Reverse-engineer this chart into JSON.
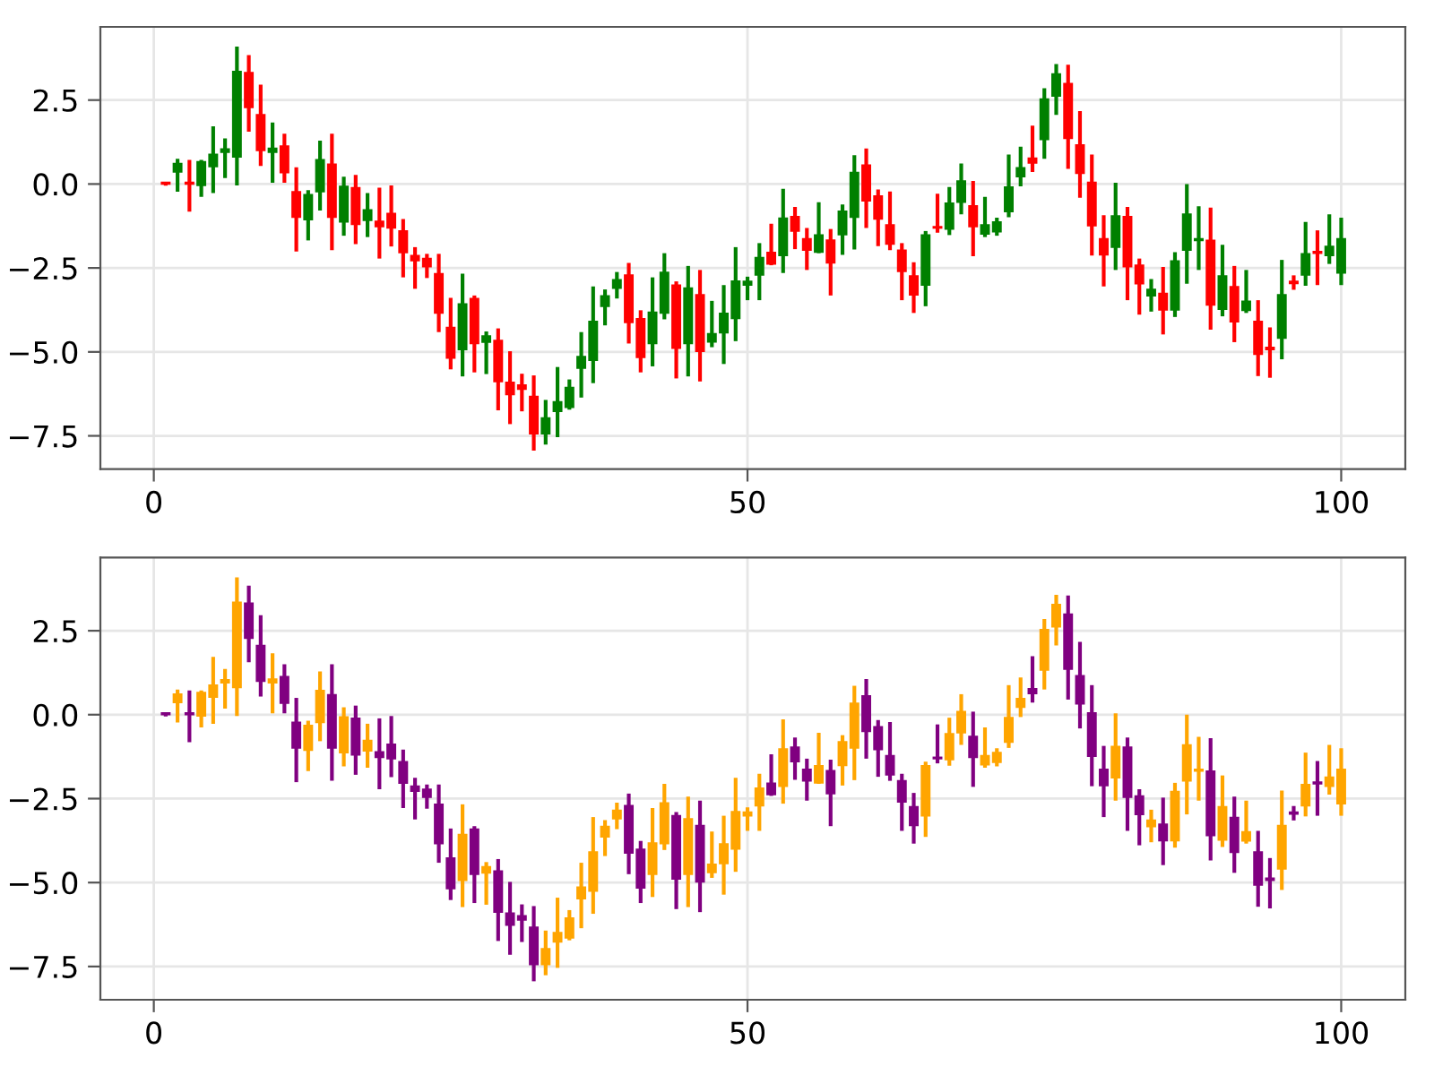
{
  "chart_data": [
    {
      "type": "candlestick",
      "x": [
        1,
        2,
        3,
        4,
        5,
        6,
        7,
        8,
        9,
        10,
        11,
        12,
        13,
        14,
        15,
        16,
        17,
        18,
        19,
        20,
        21,
        22,
        23,
        24,
        25,
        26,
        27,
        28,
        29,
        30,
        31,
        32,
        33,
        34,
        35,
        36,
        37,
        38,
        39,
        40,
        41,
        42,
        43,
        44,
        45,
        46,
        47,
        48,
        49,
        50,
        51,
        52,
        53,
        54,
        55,
        56,
        57,
        58,
        59,
        60,
        61,
        62,
        63,
        64,
        65,
        66,
        67,
        68,
        69,
        70,
        71,
        72,
        73,
        74,
        75,
        76,
        77,
        78,
        79,
        80,
        81,
        82,
        83,
        84,
        85,
        86,
        87,
        88,
        89,
        90,
        91,
        92,
        93,
        94,
        95,
        96,
        97,
        98,
        99,
        100
      ],
      "ohlc": [
        [
          0.05,
          0.05,
          -0.05,
          0
        ],
        [
          0.36,
          0.75,
          -0.23,
          0.61
        ],
        [
          0.05,
          0.72,
          -0.82,
          0
        ],
        [
          -0.04,
          0.72,
          -0.38,
          0.66
        ],
        [
          0.52,
          1.72,
          -0.27,
          0.88
        ],
        [
          0.95,
          1.36,
          0.18,
          1.04
        ],
        [
          0.81,
          4.09,
          -0.04,
          3.35
        ],
        [
          3.32,
          3.84,
          1.56,
          2.28
        ],
        [
          2.06,
          2.96,
          0.54,
          1.0
        ],
        [
          0.95,
          1.83,
          0.04,
          1.06
        ],
        [
          1.13,
          1.5,
          0.04,
          0.34
        ],
        [
          -0.23,
          0.5,
          -2.01,
          -0.99
        ],
        [
          -1.06,
          -0.18,
          -1.68,
          -0.32
        ],
        [
          -0.23,
          1.29,
          -0.79,
          0.72
        ],
        [
          0.59,
          1.5,
          -1.97,
          -0.99
        ],
        [
          -1.13,
          0.22,
          -1.54,
          -0.07
        ],
        [
          -0.11,
          0.27,
          -1.79,
          -1.2
        ],
        [
          -1.08,
          -0.27,
          -1.58,
          -0.77
        ],
        [
          -1.11,
          -0.11,
          -2.22,
          -1.27
        ],
        [
          -0.88,
          -0.04,
          -1.86,
          -1.31
        ],
        [
          -1.4,
          -1.04,
          -2.78,
          -2.04
        ],
        [
          -2.13,
          -1.88,
          -3.12,
          -2.28
        ],
        [
          -2.22,
          -2.08,
          -2.8,
          -2.46
        ],
        [
          -2.67,
          -2.08,
          -4.41,
          -3.84
        ],
        [
          -4.27,
          -3.39,
          -5.52,
          -5.18
        ],
        [
          -4.93,
          -2.67,
          -5.73,
          -3.57
        ],
        [
          -3.41,
          -3.32,
          -5.61,
          -4.75
        ],
        [
          -4.71,
          -4.39,
          -5.66,
          -4.53
        ],
        [
          -4.66,
          -4.3,
          -6.74,
          -5.88
        ],
        [
          -5.91,
          -4.98,
          -7.15,
          -6.27
        ],
        [
          -5.99,
          -5.65,
          -6.77,
          -6.11
        ],
        [
          -6.33,
          -5.7,
          -7.94,
          -7.44
        ],
        [
          -7.44,
          -6.43,
          -7.76,
          -6.97
        ],
        [
          -6.77,
          -5.45,
          -7.54,
          -6.49
        ],
        [
          -6.65,
          -5.82,
          -6.72,
          -6.06
        ],
        [
          -5.48,
          -4.41,
          -6.36,
          -5.14
        ],
        [
          -5.25,
          -3.05,
          -5.93,
          -4.09
        ],
        [
          -3.64,
          -3.14,
          -4.21,
          -3.33
        ],
        [
          -3.1,
          -2.62,
          -3.41,
          -2.85
        ],
        [
          -2.71,
          -2.35,
          -4.75,
          -4.12
        ],
        [
          -4.01,
          -3.76,
          -5.61,
          -5.16
        ],
        [
          -4.75,
          -2.78,
          -5.43,
          -3.82
        ],
        [
          -3.84,
          -2.06,
          -4.03,
          -2.63
        ],
        [
          -3.01,
          -2.9,
          -5.79,
          -4.89
        ],
        [
          -4.75,
          -2.44,
          -5.73,
          -3.1
        ],
        [
          -3.3,
          -2.56,
          -5.88,
          -4.98
        ],
        [
          -4.7,
          -3.48,
          -4.86,
          -4.46
        ],
        [
          -4.43,
          -3.01,
          -5.36,
          -3.85
        ],
        [
          -4.0,
          -1.88,
          -4.68,
          -2.89
        ],
        [
          -3.01,
          -2.76,
          -3.46,
          -2.9
        ],
        [
          -2.71,
          -1.76,
          -3.46,
          -2.19
        ],
        [
          -2.04,
          -1.18,
          -2.42,
          -2.38
        ],
        [
          -2.13,
          -0.14,
          -2.65,
          -1.02
        ],
        [
          -0.97,
          -0.68,
          -1.94,
          -1.4
        ],
        [
          -1.63,
          -1.31,
          -2.56,
          -1.97
        ],
        [
          -2.03,
          -0.54,
          -2.06,
          -1.52
        ],
        [
          -1.67,
          -1.34,
          -3.32,
          -2.35
        ],
        [
          -1.51,
          -0.61,
          -2.11,
          -0.81
        ],
        [
          -0.99,
          0.86,
          -1.95,
          0.34
        ],
        [
          0.56,
          1.06,
          -1.31,
          -0.5
        ],
        [
          -0.36,
          -0.16,
          -1.85,
          -1.04
        ],
        [
          -1.22,
          -0.22,
          -1.97,
          -1.79
        ],
        [
          -1.97,
          -1.76,
          -3.46,
          -2.6
        ],
        [
          -2.74,
          -2.33,
          -3.84,
          -3.3
        ],
        [
          -3.01,
          -1.4,
          -3.64,
          -1.52
        ],
        [
          -1.27,
          -0.29,
          -1.45,
          -1.31
        ],
        [
          -1.34,
          -0.09,
          -1.52,
          -0.57
        ],
        [
          -0.54,
          0.61,
          -0.9,
          0.09
        ],
        [
          -0.65,
          0.09,
          -2.15,
          -1.27
        ],
        [
          -1.49,
          -0.38,
          -1.58,
          -1.22
        ],
        [
          -1.42,
          -1.0,
          -1.54,
          -1.13
        ],
        [
          -0.82,
          0.88,
          -0.99,
          -0.09
        ],
        [
          0.22,
          1.11,
          -0.07,
          0.48
        ],
        [
          0.77,
          1.74,
          0.36,
          0.63
        ],
        [
          1.33,
          2.85,
          0.75,
          2.53
        ],
        [
          2.62,
          3.57,
          2.06,
          3.28
        ],
        [
          2.99,
          3.55,
          0.45,
          1.36
        ],
        [
          1.16,
          2.17,
          -0.41,
          0.32
        ],
        [
          0.05,
          0.88,
          -2.13,
          -1.24
        ],
        [
          -1.63,
          -0.93,
          -3.05,
          -2.11
        ],
        [
          -1.88,
          0.04,
          -2.56,
          -0.95
        ],
        [
          -0.97,
          -0.68,
          -3.46,
          -2.46
        ],
        [
          -2.42,
          -2.22,
          -3.89,
          -2.97
        ],
        [
          -3.33,
          -2.83,
          -3.8,
          -3.14
        ],
        [
          -3.26,
          -2.47,
          -4.48,
          -3.75
        ],
        [
          -3.75,
          -2.03,
          -3.96,
          -2.29
        ],
        [
          -1.97,
          0.0,
          -2.97,
          -0.9
        ],
        [
          -1.68,
          -0.66,
          -2.56,
          -1.63
        ],
        [
          -1.68,
          -0.7,
          -4.34,
          -3.6
        ],
        [
          -3.73,
          -1.81,
          -3.94,
          -2.74
        ],
        [
          -3.06,
          -2.44,
          -4.71,
          -4.1
        ],
        [
          -3.76,
          -2.56,
          -3.84,
          -3.49
        ],
        [
          -4.09,
          -3.46,
          -5.72,
          -5.07
        ],
        [
          -4.87,
          -4.27,
          -5.77,
          -4.93
        ],
        [
          -4.59,
          -2.26,
          -5.22,
          -3.3
        ],
        [
          -2.9,
          -2.72,
          -3.15,
          -2.96
        ],
        [
          -2.71,
          -1.13,
          -3.03,
          -2.08
        ],
        [
          -2.01,
          -1.38,
          -3.01,
          -2.06
        ],
        [
          -2.13,
          -0.9,
          -2.38,
          -1.86
        ],
        [
          -2.65,
          -1.0,
          -3.01,
          -1.63
        ]
      ],
      "colors": [
        "#ff0000",
        "#008000",
        "#ff0000",
        "#008000",
        "#008000",
        "#008000",
        "#008000",
        "#ff0000",
        "#ff0000",
        "#008000",
        "#ff0000",
        "#ff0000",
        "#008000",
        "#008000",
        "#ff0000",
        "#008000",
        "#ff0000",
        "#008000",
        "#ff0000",
        "#ff0000",
        "#ff0000",
        "#ff0000",
        "#ff0000",
        "#ff0000",
        "#ff0000",
        "#008000",
        "#ff0000",
        "#008000",
        "#ff0000",
        "#ff0000",
        "#ff0000",
        "#ff0000",
        "#008000",
        "#008000",
        "#008000",
        "#008000",
        "#008000",
        "#008000",
        "#008000",
        "#ff0000",
        "#ff0000",
        "#008000",
        "#008000",
        "#ff0000",
        "#008000",
        "#ff0000",
        "#008000",
        "#008000",
        "#008000",
        "#008000",
        "#008000",
        "#ff0000",
        "#008000",
        "#ff0000",
        "#ff0000",
        "#008000",
        "#ff0000",
        "#008000",
        "#008000",
        "#ff0000",
        "#ff0000",
        "#ff0000",
        "#ff0000",
        "#ff0000",
        "#008000",
        "#ff0000",
        "#008000",
        "#008000",
        "#ff0000",
        "#008000",
        "#008000",
        "#008000",
        "#008000",
        "#ff0000",
        "#008000",
        "#008000",
        "#ff0000",
        "#ff0000",
        "#ff0000",
        "#ff0000",
        "#008000",
        "#ff0000",
        "#ff0000",
        "#008000",
        "#ff0000",
        "#008000",
        "#008000",
        "#008000",
        "#ff0000",
        "#008000",
        "#ff0000",
        "#008000",
        "#ff0000",
        "#ff0000",
        "#008000",
        "#ff0000",
        "#008000",
        "#ff0000",
        "#008000",
        "#008000"
      ],
      "xlim": [
        -4.5,
        105.4
      ],
      "ylim": [
        -8.49,
        4.68
      ],
      "xticks": [
        0,
        50,
        100
      ],
      "yticks": [
        {
          "value": -7.5,
          "label": "−7.5"
        },
        {
          "value": -5,
          "label": "−5.0"
        },
        {
          "value": -2.5,
          "label": "−2.5"
        },
        {
          "value": 0,
          "label": "0.0"
        },
        2.5
      ],
      "grid": true
    },
    {
      "type": "candlestick",
      "x": [
        1,
        2,
        3,
        4,
        5,
        6,
        7,
        8,
        9,
        10,
        11,
        12,
        13,
        14,
        15,
        16,
        17,
        18,
        19,
        20,
        21,
        22,
        23,
        24,
        25,
        26,
        27,
        28,
        29,
        30,
        31,
        32,
        33,
        34,
        35,
        36,
        37,
        38,
        39,
        40,
        41,
        42,
        43,
        44,
        45,
        46,
        47,
        48,
        49,
        50,
        51,
        52,
        53,
        54,
        55,
        56,
        57,
        58,
        59,
        60,
        61,
        62,
        63,
        64,
        65,
        66,
        67,
        68,
        69,
        70,
        71,
        72,
        73,
        74,
        75,
        76,
        77,
        78,
        79,
        80,
        81,
        82,
        83,
        84,
        85,
        86,
        87,
        88,
        89,
        90,
        91,
        92,
        93,
        94,
        95,
        96,
        97,
        98,
        99,
        100
      ],
      "ohlc": [
        [
          0.05,
          0.05,
          -0.05,
          0
        ],
        [
          0.36,
          0.75,
          -0.23,
          0.61
        ],
        [
          0.05,
          0.72,
          -0.82,
          0
        ],
        [
          -0.04,
          0.72,
          -0.38,
          0.66
        ],
        [
          0.52,
          1.72,
          -0.27,
          0.88
        ],
        [
          0.95,
          1.36,
          0.18,
          1.04
        ],
        [
          0.81,
          4.09,
          -0.04,
          3.35
        ],
        [
          3.32,
          3.84,
          1.56,
          2.28
        ],
        [
          2.06,
          2.96,
          0.54,
          1.0
        ],
        [
          0.95,
          1.83,
          0.04,
          1.06
        ],
        [
          1.13,
          1.5,
          0.04,
          0.34
        ],
        [
          -0.23,
          0.5,
          -2.01,
          -0.99
        ],
        [
          -1.06,
          -0.18,
          -1.68,
          -0.32
        ],
        [
          -0.23,
          1.29,
          -0.79,
          0.72
        ],
        [
          0.59,
          1.5,
          -1.97,
          -0.99
        ],
        [
          -1.13,
          0.22,
          -1.54,
          -0.07
        ],
        [
          -0.11,
          0.27,
          -1.79,
          -1.2
        ],
        [
          -1.08,
          -0.27,
          -1.58,
          -0.77
        ],
        [
          -1.11,
          -0.11,
          -2.22,
          -1.27
        ],
        [
          -0.88,
          -0.04,
          -1.86,
          -1.31
        ],
        [
          -1.4,
          -1.04,
          -2.78,
          -2.04
        ],
        [
          -2.13,
          -1.88,
          -3.12,
          -2.28
        ],
        [
          -2.22,
          -2.08,
          -2.8,
          -2.46
        ],
        [
          -2.67,
          -2.08,
          -4.41,
          -3.84
        ],
        [
          -4.27,
          -3.39,
          -5.52,
          -5.18
        ],
        [
          -4.93,
          -2.67,
          -5.73,
          -3.57
        ],
        [
          -3.41,
          -3.32,
          -5.61,
          -4.75
        ],
        [
          -4.71,
          -4.39,
          -5.66,
          -4.53
        ],
        [
          -4.66,
          -4.3,
          -6.74,
          -5.88
        ],
        [
          -5.91,
          -4.98,
          -7.15,
          -6.27
        ],
        [
          -5.99,
          -5.65,
          -6.77,
          -6.11
        ],
        [
          -6.33,
          -5.7,
          -7.94,
          -7.44
        ],
        [
          -7.44,
          -6.43,
          -7.76,
          -6.97
        ],
        [
          -6.77,
          -5.45,
          -7.54,
          -6.49
        ],
        [
          -6.65,
          -5.82,
          -6.72,
          -6.06
        ],
        [
          -5.48,
          -4.41,
          -6.36,
          -5.14
        ],
        [
          -5.25,
          -3.05,
          -5.93,
          -4.09
        ],
        [
          -3.64,
          -3.14,
          -4.21,
          -3.33
        ],
        [
          -3.1,
          -2.62,
          -3.41,
          -2.85
        ],
        [
          -2.71,
          -2.35,
          -4.75,
          -4.12
        ],
        [
          -4.01,
          -3.76,
          -5.61,
          -5.16
        ],
        [
          -4.75,
          -2.78,
          -5.43,
          -3.82
        ],
        [
          -3.84,
          -2.06,
          -4.03,
          -2.63
        ],
        [
          -3.01,
          -2.9,
          -5.79,
          -4.89
        ],
        [
          -4.75,
          -2.44,
          -5.73,
          -3.1
        ],
        [
          -3.3,
          -2.56,
          -5.88,
          -4.98
        ],
        [
          -4.7,
          -3.48,
          -4.86,
          -4.46
        ],
        [
          -4.43,
          -3.01,
          -5.36,
          -3.85
        ],
        [
          -4.0,
          -1.88,
          -4.68,
          -2.89
        ],
        [
          -3.01,
          -2.76,
          -3.46,
          -2.9
        ],
        [
          -2.71,
          -1.76,
          -3.46,
          -2.19
        ],
        [
          -2.04,
          -1.18,
          -2.42,
          -2.38
        ],
        [
          -2.13,
          -0.14,
          -2.65,
          -1.02
        ],
        [
          -0.97,
          -0.68,
          -1.94,
          -1.4
        ],
        [
          -1.63,
          -1.31,
          -2.56,
          -1.97
        ],
        [
          -2.03,
          -0.54,
          -2.06,
          -1.52
        ],
        [
          -1.67,
          -1.34,
          -3.32,
          -2.35
        ],
        [
          -1.51,
          -0.61,
          -2.11,
          -0.81
        ],
        [
          -0.99,
          0.86,
          -1.95,
          0.34
        ],
        [
          0.56,
          1.06,
          -1.31,
          -0.5
        ],
        [
          -0.36,
          -0.16,
          -1.85,
          -1.04
        ],
        [
          -1.22,
          -0.22,
          -1.97,
          -1.79
        ],
        [
          -1.97,
          -1.76,
          -3.46,
          -2.6
        ],
        [
          -2.74,
          -2.33,
          -3.84,
          -3.3
        ],
        [
          -3.01,
          -1.4,
          -3.64,
          -1.52
        ],
        [
          -1.27,
          -0.29,
          -1.45,
          -1.31
        ],
        [
          -1.34,
          -0.09,
          -1.52,
          -0.57
        ],
        [
          -0.54,
          0.61,
          -0.9,
          0.09
        ],
        [
          -0.65,
          0.09,
          -2.15,
          -1.27
        ],
        [
          -1.49,
          -0.38,
          -1.58,
          -1.22
        ],
        [
          -1.42,
          -1.0,
          -1.54,
          -1.13
        ],
        [
          -0.82,
          0.88,
          -0.99,
          -0.09
        ],
        [
          0.22,
          1.11,
          -0.07,
          0.48
        ],
        [
          0.77,
          1.74,
          0.36,
          0.63
        ],
        [
          1.33,
          2.85,
          0.75,
          2.53
        ],
        [
          2.62,
          3.57,
          2.06,
          3.28
        ],
        [
          2.99,
          3.55,
          0.45,
          1.36
        ],
        [
          1.16,
          2.17,
          -0.41,
          0.32
        ],
        [
          0.05,
          0.88,
          -2.13,
          -1.24
        ],
        [
          -1.63,
          -0.93,
          -3.05,
          -2.11
        ],
        [
          -1.88,
          0.04,
          -2.56,
          -0.95
        ],
        [
          -0.97,
          -0.68,
          -3.46,
          -2.46
        ],
        [
          -2.42,
          -2.22,
          -3.89,
          -2.97
        ],
        [
          -3.33,
          -2.83,
          -3.8,
          -3.14
        ],
        [
          -3.26,
          -2.47,
          -4.48,
          -3.75
        ],
        [
          -3.75,
          -2.03,
          -3.96,
          -2.29
        ],
        [
          -1.97,
          0.0,
          -2.97,
          -0.9
        ],
        [
          -1.68,
          -0.66,
          -2.56,
          -1.63
        ],
        [
          -1.68,
          -0.7,
          -4.34,
          -3.6
        ],
        [
          -3.73,
          -1.81,
          -3.94,
          -2.74
        ],
        [
          -3.06,
          -2.44,
          -4.71,
          -4.1
        ],
        [
          -3.76,
          -2.56,
          -3.84,
          -3.49
        ],
        [
          -4.09,
          -3.46,
          -5.72,
          -5.07
        ],
        [
          -4.87,
          -4.27,
          -5.77,
          -4.93
        ],
        [
          -4.59,
          -2.26,
          -5.22,
          -3.3
        ],
        [
          -2.9,
          -2.72,
          -3.15,
          -2.96
        ],
        [
          -2.71,
          -1.13,
          -3.03,
          -2.08
        ],
        [
          -2.01,
          -1.38,
          -3.01,
          -2.06
        ],
        [
          -2.13,
          -0.9,
          -2.38,
          -1.86
        ],
        [
          -2.65,
          -1.0,
          -3.01,
          -1.63
        ]
      ],
      "colors": [
        "#800080",
        "#ffa500",
        "#800080",
        "#ffa500",
        "#ffa500",
        "#ffa500",
        "#ffa500",
        "#800080",
        "#800080",
        "#ffa500",
        "#800080",
        "#800080",
        "#ffa500",
        "#ffa500",
        "#800080",
        "#ffa500",
        "#800080",
        "#ffa500",
        "#800080",
        "#800080",
        "#800080",
        "#800080",
        "#800080",
        "#800080",
        "#800080",
        "#ffa500",
        "#800080",
        "#ffa500",
        "#800080",
        "#800080",
        "#800080",
        "#800080",
        "#ffa500",
        "#ffa500",
        "#ffa500",
        "#ffa500",
        "#ffa500",
        "#ffa500",
        "#ffa500",
        "#800080",
        "#800080",
        "#ffa500",
        "#ffa500",
        "#800080",
        "#ffa500",
        "#800080",
        "#ffa500",
        "#ffa500",
        "#ffa500",
        "#ffa500",
        "#ffa500",
        "#800080",
        "#ffa500",
        "#800080",
        "#800080",
        "#ffa500",
        "#800080",
        "#ffa500",
        "#ffa500",
        "#800080",
        "#800080",
        "#800080",
        "#800080",
        "#800080",
        "#ffa500",
        "#800080",
        "#ffa500",
        "#ffa500",
        "#800080",
        "#ffa500",
        "#ffa500",
        "#ffa500",
        "#ffa500",
        "#800080",
        "#ffa500",
        "#ffa500",
        "#800080",
        "#800080",
        "#800080",
        "#800080",
        "#ffa500",
        "#800080",
        "#800080",
        "#ffa500",
        "#800080",
        "#ffa500",
        "#ffa500",
        "#ffa500",
        "#800080",
        "#ffa500",
        "#800080",
        "#ffa500",
        "#800080",
        "#800080",
        "#ffa500",
        "#800080",
        "#ffa500",
        "#800080",
        "#ffa500",
        "#ffa500"
      ],
      "xlim": [
        -4.5,
        105.4
      ],
      "ylim": [
        -8.49,
        4.68
      ],
      "xticks": [
        0,
        50,
        100
      ],
      "yticks": [
        {
          "value": -7.5,
          "label": "−7.5"
        },
        {
          "value": -5,
          "label": "−5.0"
        },
        {
          "value": -2.5,
          "label": "−2.5"
        },
        {
          "value": 0,
          "label": "0.0"
        },
        2.5
      ],
      "grid": true
    }
  ]
}
